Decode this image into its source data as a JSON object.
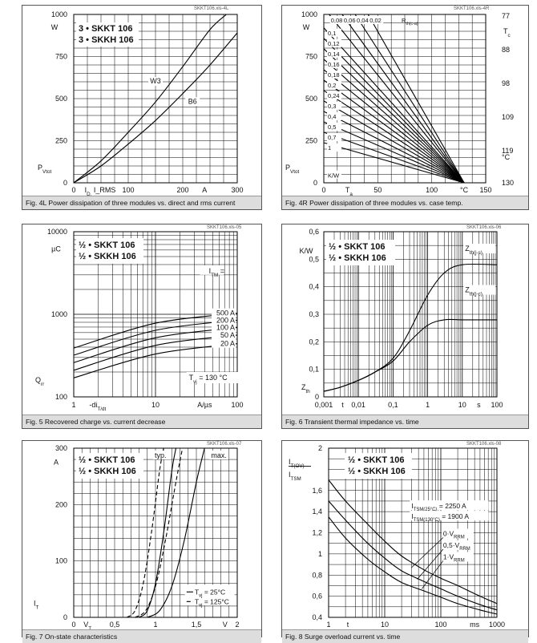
{
  "panels": [
    {
      "caption": "Fig. 4L Power dissipation of three modules vs. direct and rms current",
      "source": "SKKT106.xls-4L",
      "chart_data": {
        "type": "line",
        "title_lines": [
          "3 • SKKT 106",
          "3 • SKKH 106"
        ],
        "unit_y": "W",
        "xlabel": "I_D, I_RMS",
        "xunit": "A",
        "ylabel": "P_Vtot",
        "xlim": [
          0,
          300
        ],
        "ylim": [
          0,
          1000
        ],
        "x_ticks": [
          0,
          100,
          200,
          300
        ],
        "y_ticks": [
          0,
          250,
          500,
          750,
          1000
        ],
        "series": [
          {
            "name": "W3",
            "x": [
              0,
              50,
              100,
              150,
              200,
              250,
              280
            ],
            "y": [
              0,
              130,
              300,
              480,
              690,
              910,
              1000
            ]
          },
          {
            "name": "B6",
            "x": [
              0,
              50,
              100,
              150,
              200,
              250,
              300
            ],
            "y": [
              0,
              100,
              230,
              370,
              530,
              700,
              890
            ]
          }
        ]
      }
    },
    {
      "caption": "Fig. 4R Power dissipation of three modules vs. case temp.",
      "source": "SKKT106.xls-4R",
      "chart_data": {
        "type": "line",
        "unit_y": "W",
        "ylabel": "P_Vtot",
        "xlabel": "T_a",
        "xunit": "°C",
        "xlim": [
          0,
          150
        ],
        "ylim": [
          0,
          1000
        ],
        "x_ticks": [
          0,
          50,
          100,
          150
        ],
        "y_ticks": [
          0,
          250,
          500,
          750,
          1000
        ],
        "right_axis_title": "T_c",
        "right_axis_unit": "°C",
        "right_ticks": [
          77,
          88,
          98,
          109,
          119,
          130
        ],
        "rth_label": "R_th(c-a)",
        "rth_unit": "K/W",
        "rth_values": [
          "0,08",
          "0,06",
          "0,04",
          "0,02",
          "0,1",
          "0,12",
          "0,14",
          "0,16",
          "0,18",
          "0,2",
          "0,24",
          "0,3",
          "0,4",
          "0,5",
          "0,7",
          "1"
        ],
        "convergence": {
          "x": 130,
          "y": 0
        }
      }
    },
    {
      "caption": "Fig. 5 Recovered charge vs. current decrease",
      "source": "SKKT106.xls-05",
      "chart_data": {
        "type": "line",
        "title_lines": [
          "½ • SKKT 106",
          "½ • SKKH 106"
        ],
        "unit_y": "µC",
        "ylabel": "Q_rr",
        "xlabel": "-di_T/dt",
        "xunit": "A/µs",
        "xscale": "log",
        "yscale": "log",
        "xlim": [
          1,
          100
        ],
        "ylim": [
          100,
          10000
        ],
        "x_ticks": [
          1,
          10,
          100
        ],
        "y_ticks": [
          100,
          1000,
          10000
        ],
        "legend_title": "I_TM =",
        "annotation": "T_vj = 130 °C",
        "series": [
          {
            "name": "500 A",
            "x": [
              1,
              10,
              100
            ],
            "y": [
              390,
              780,
              1030
            ]
          },
          {
            "name": "200 A",
            "x": [
              1,
              10,
              100
            ],
            "y": [
              320,
              640,
              850
            ]
          },
          {
            "name": "100 A",
            "x": [
              1,
              10,
              100
            ],
            "y": [
              260,
              520,
              690
            ]
          },
          {
            "name": "50 A",
            "x": [
              1,
              10,
              100
            ],
            "y": [
              210,
              420,
              560
            ]
          },
          {
            "name": "20 A",
            "x": [
              1,
              10,
              100
            ],
            "y": [
              170,
              330,
              440
            ]
          }
        ]
      }
    },
    {
      "caption": "Fig. 6 Transient thermal impedance vs. time",
      "source": "SKKT106.xls-06",
      "chart_data": {
        "type": "line",
        "title_lines": [
          "½ • SKKT 106",
          "½ • SKKH 106"
        ],
        "unit_y": "K/W",
        "ylabel": "Z_th",
        "xlabel": "t",
        "xunit": "s",
        "xscale": "log",
        "xlim": [
          0.001,
          100
        ],
        "ylim": [
          0,
          0.6
        ],
        "x_ticks": [
          "0,001",
          "0,01",
          "0,1",
          "1",
          "10",
          "100"
        ],
        "y_ticks": [
          "0",
          "0,1",
          "0,2",
          "0,3",
          "0,4",
          "0,5",
          "0,6"
        ],
        "series": [
          {
            "name": "Z_th(j-s)",
            "x": [
              0.001,
              0.003,
              0.01,
              0.03,
              0.1,
              0.3,
              1,
              3,
              10,
              100
            ],
            "y": [
              0.02,
              0.035,
              0.06,
              0.09,
              0.14,
              0.24,
              0.37,
              0.45,
              0.48,
              0.48
            ]
          },
          {
            "name": "Z_th(j-c)",
            "x": [
              0.001,
              0.003,
              0.01,
              0.03,
              0.1,
              0.3,
              1,
              3,
              10,
              100
            ],
            "y": [
              0.02,
              0.035,
              0.06,
              0.09,
              0.13,
              0.2,
              0.26,
              0.28,
              0.28,
              0.28
            ]
          }
        ]
      }
    },
    {
      "caption": "Fig. 7 On-state characteristics",
      "source": "SKKT106.xls-07",
      "chart_data": {
        "type": "line",
        "title_lines": [
          "½ • SKKT 106",
          "½ • SKKH 106"
        ],
        "unit_y": "A",
        "ylabel": "I_T",
        "xlabel": "V_T",
        "xunit": "V",
        "xlim": [
          0,
          2
        ],
        "ylim": [
          0,
          300
        ],
        "x_ticks": [
          "0",
          "0,5",
          "1",
          "1,5",
          "2"
        ],
        "y_ticks": [
          0,
          100,
          200,
          300
        ],
        "labels": [
          "typ.",
          "max."
        ],
        "legend": [
          "T_vj = 25°C",
          "T_vj = 125°C"
        ],
        "series": [
          {
            "name": "typ. 25°C",
            "style": "solid",
            "x": [
              0.8,
              0.9,
              1.0,
              1.1,
              1.2,
              1.25
            ],
            "y": [
              0,
              12,
              60,
              150,
              260,
              300
            ]
          },
          {
            "name": "typ. 125°C",
            "style": "dashed",
            "x": [
              0.65,
              0.75,
              0.85,
              0.95,
              1.05,
              1.1
            ],
            "y": [
              0,
              12,
              60,
              150,
              260,
              300
            ]
          },
          {
            "name": "max. 25°C",
            "style": "solid",
            "x": [
              0.9,
              1.05,
              1.2,
              1.35,
              1.5,
              1.6
            ],
            "y": [
              0,
              12,
              55,
              135,
              240,
              300
            ]
          },
          {
            "name": "max. 125°C",
            "style": "dashed",
            "x": [
              0.75,
              0.88,
              1.0,
              1.12,
              1.25,
              1.33
            ],
            "y": [
              0,
              12,
              55,
              135,
              240,
              300
            ]
          }
        ]
      }
    },
    {
      "caption": "Fig. 8 Surge overload current vs. time",
      "source": "SKKT106.xls-08",
      "chart_data": {
        "type": "line",
        "title_lines": [
          "½ • SKKT 106",
          "½ • SKKH 106"
        ],
        "ylabel_top": "I_T(OV)",
        "ylabel_bottom": "I_TSM",
        "xlabel": "t",
        "xunit": "ms",
        "xscale": "log",
        "xlim": [
          1,
          1000
        ],
        "ylim": [
          0.4,
          2
        ],
        "x_ticks": [
          "1",
          "10",
          "100",
          "1000"
        ],
        "y_ticks": [
          "0,4",
          "0,6",
          "0,8",
          "1",
          "1,2",
          "1,4",
          "1,6",
          "2"
        ],
        "annotations": [
          "I_TSM(25°C) = 2250 A",
          "I_TSM(130°C) = 1900 A"
        ],
        "series": [
          {
            "name": "0·V_RRM",
            "x": [
              1,
              2,
              5,
              10,
              20,
              50,
              100,
              200,
              500,
              1000
            ],
            "y": [
              1.7,
              1.5,
              1.28,
              1.12,
              0.98,
              0.85,
              0.77,
              0.7,
              0.6,
              0.53
            ]
          },
          {
            "name": "0,5·V_RRM",
            "x": [
              1,
              2,
              5,
              10,
              20,
              50,
              100,
              200,
              500,
              1000
            ],
            "y": [
              1.5,
              1.32,
              1.1,
              0.96,
              0.84,
              0.74,
              0.67,
              0.6,
              0.52,
              0.47
            ]
          },
          {
            "name": "1·V_RRM",
            "x": [
              1,
              2,
              5,
              10,
              20,
              50,
              100,
              200,
              500,
              1000
            ],
            "y": [
              1.35,
              1.15,
              0.95,
              0.83,
              0.73,
              0.65,
              0.59,
              0.53,
              0.47,
              0.43
            ]
          }
        ]
      }
    }
  ]
}
